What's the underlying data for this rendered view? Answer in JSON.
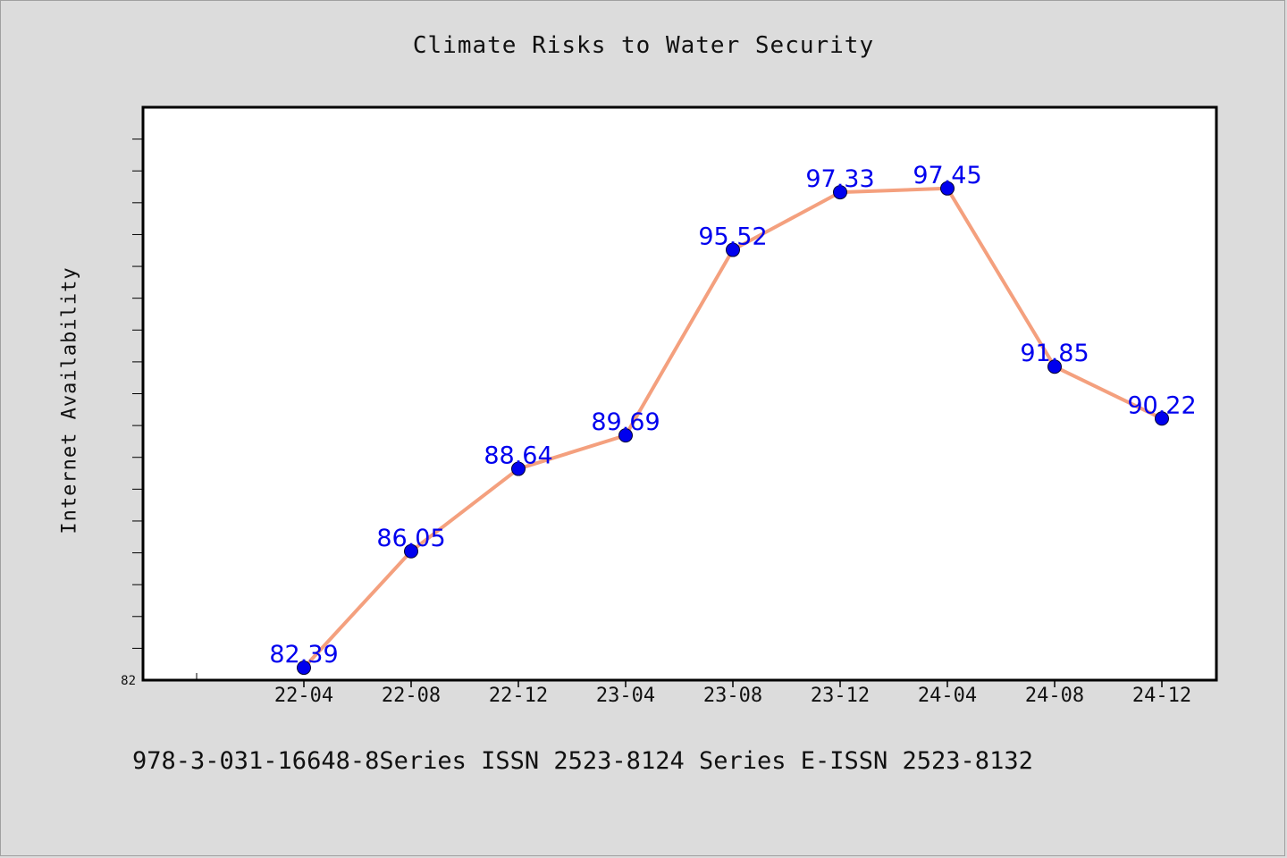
{
  "chart_data": {
    "type": "line",
    "title": "Climate Risks to Water Security",
    "xlabel": "",
    "ylabel": "Internet Availability",
    "categories": [
      "22-04",
      "22-08",
      "22-12",
      "23-04",
      "23-08",
      "23-12",
      "24-04",
      "24-08",
      "24-12"
    ],
    "series": [
      {
        "values": [
          82.39,
          86.05,
          88.64,
          89.69,
          95.52,
          97.33,
          97.45,
          91.85,
          90.22
        ],
        "labels": [
          "82.39",
          "86.05",
          "88.64",
          "89.69",
          "95.52",
          "97.33",
          "97.45",
          "91.85",
          "90.22"
        ],
        "line_color": "#f4a07e",
        "marker_color": "#0000ee",
        "label_color": "#0000ee"
      }
    ],
    "ylim": [
      82,
      100
    ],
    "y_tick_labels": [
      "82"
    ],
    "grid": false
  },
  "footer_text": "978-3-031-16648-8Series ISSN 2523-8124 Series E-ISSN 2523-8132"
}
